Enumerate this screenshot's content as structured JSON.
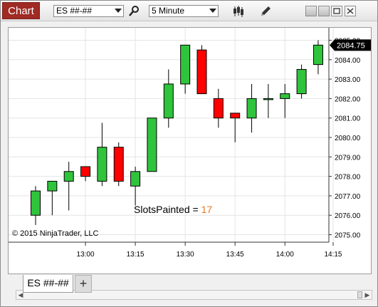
{
  "window": {
    "title": "Chart",
    "instrument": "ES ##-##",
    "interval": "5 Minute",
    "tab_label": "ES ##-##",
    "add_tab_label": "+"
  },
  "icons": [
    "search-icon",
    "bar-style-icon",
    "pencil-icon",
    "minimize-icon",
    "restore-icon",
    "maximize-icon",
    "close-icon"
  ],
  "colors": {
    "title_bg": "#a02a24",
    "up_candle": "#2fc43c",
    "down_candle": "#ff0000",
    "last_price_bg": "#000000",
    "slots_value": "#e87722"
  },
  "chart_data": {
    "type": "candlestick",
    "copyright": "© 2015 NinjaTrader, LLC",
    "slots_label": "SlotsPainted = ",
    "slots_value": "17",
    "last_price_label": "2084.75",
    "price_axis": {
      "ylim": [
        2074.5,
        2085.5
      ],
      "ticks": [
        "2075.00",
        "2076.00",
        "2077.00",
        "2078.00",
        "2079.00",
        "2080.00",
        "2081.00",
        "2082.00",
        "2083.00",
        "2084.00",
        "2085.00"
      ]
    },
    "time_axis": {
      "ticks": [
        "13:00",
        "13:15",
        "13:30",
        "13:45",
        "14:00",
        "14:15"
      ]
    },
    "candles": [
      {
        "time": "12:45",
        "open": 2076.0,
        "high": 2077.5,
        "low": 2075.5,
        "close": 2077.25
      },
      {
        "time": "12:50",
        "open": 2077.25,
        "high": 2077.75,
        "low": 2076.0,
        "close": 2077.75
      },
      {
        "time": "12:55",
        "open": 2077.75,
        "high": 2078.75,
        "low": 2076.25,
        "close": 2078.25
      },
      {
        "time": "13:00",
        "open": 2078.5,
        "high": 2078.5,
        "low": 2077.75,
        "close": 2078.0
      },
      {
        "time": "13:05",
        "open": 2077.75,
        "high": 2080.75,
        "low": 2077.5,
        "close": 2079.5
      },
      {
        "time": "13:10",
        "open": 2079.5,
        "high": 2079.75,
        "low": 2077.5,
        "close": 2077.75
      },
      {
        "time": "13:15",
        "open": 2077.5,
        "high": 2078.5,
        "low": 2076.5,
        "close": 2078.25
      },
      {
        "time": "13:20",
        "open": 2078.25,
        "high": 2081.0,
        "low": 2078.25,
        "close": 2081.0
      },
      {
        "time": "13:25",
        "open": 2081.0,
        "high": 2083.5,
        "low": 2080.5,
        "close": 2082.75
      },
      {
        "time": "13:30",
        "open": 2082.75,
        "high": 2084.75,
        "low": 2082.25,
        "close": 2084.75
      },
      {
        "time": "13:35",
        "open": 2084.5,
        "high": 2084.75,
        "low": 2082.25,
        "close": 2082.25
      },
      {
        "time": "13:40",
        "open": 2082.0,
        "high": 2082.5,
        "low": 2080.5,
        "close": 2081.0
      },
      {
        "time": "13:45",
        "open": 2081.25,
        "high": 2081.25,
        "low": 2079.75,
        "close": 2081.0
      },
      {
        "time": "13:50",
        "open": 2081.0,
        "high": 2082.75,
        "low": 2080.25,
        "close": 2082.0
      },
      {
        "time": "13:55",
        "open": 2082.0,
        "high": 2082.75,
        "low": 2081.0,
        "close": 2082.0
      },
      {
        "time": "14:00",
        "open": 2082.0,
        "high": 2082.75,
        "low": 2081.0,
        "close": 2082.25
      },
      {
        "time": "14:05",
        "open": 2082.25,
        "high": 2083.75,
        "low": 2082.0,
        "close": 2083.5
      },
      {
        "time": "14:10",
        "open": 2083.75,
        "high": 2085.0,
        "low": 2083.25,
        "close": 2084.75
      }
    ]
  }
}
